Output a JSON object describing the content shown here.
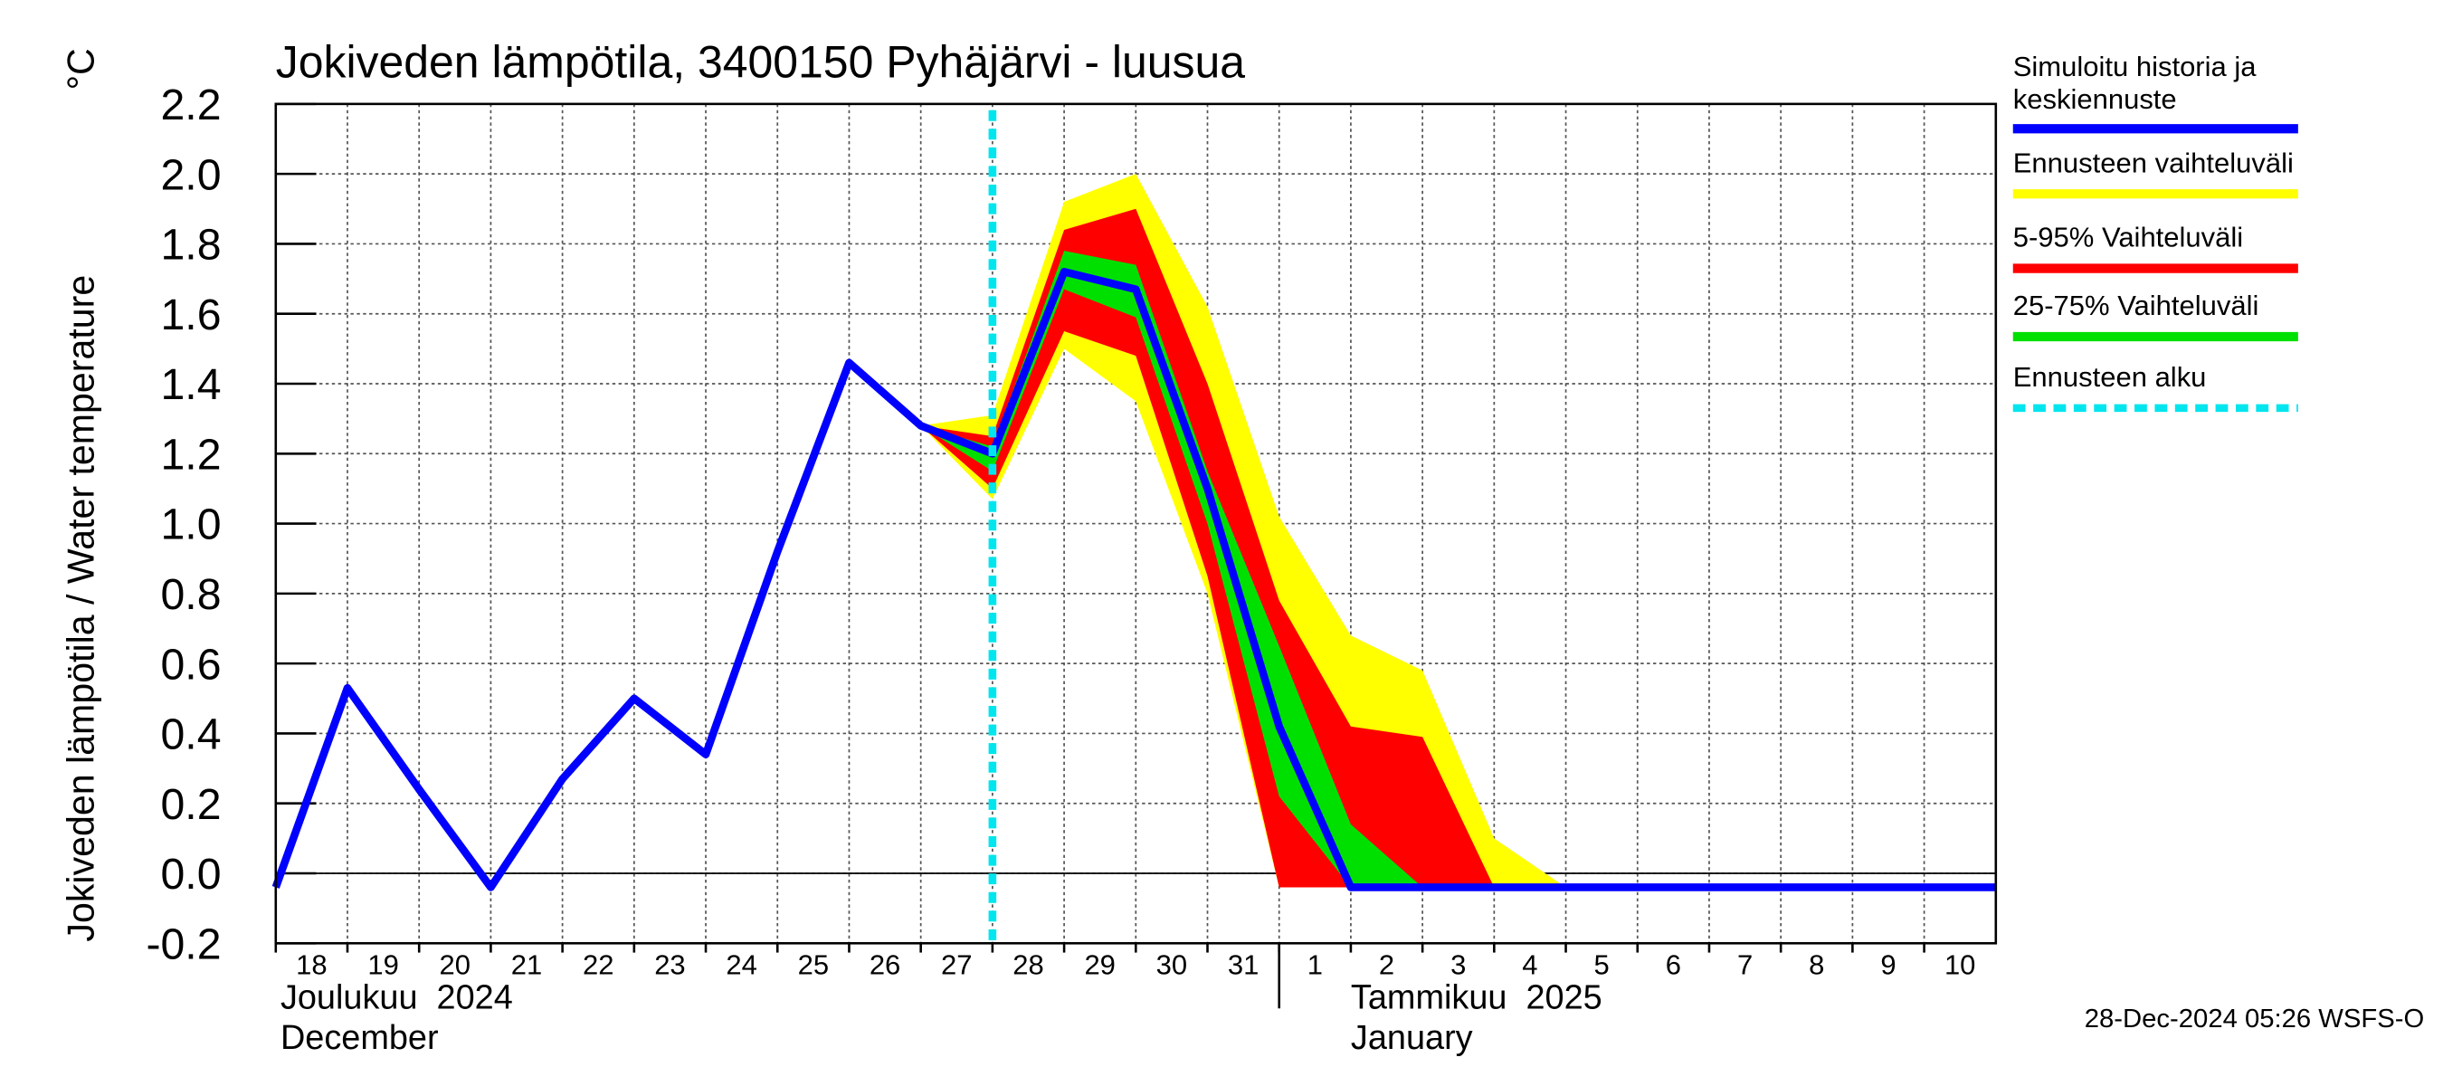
{
  "chart_data": {
    "type": "line",
    "title": "Jokiveden lämpötila, 3400150 Pyhäjärvi - luusua",
    "ylabel": "Jokiveden lämpötila / Water temperature",
    "yunit": "°C",
    "footer": "28-Dec-2024 05:26 WSFS-O",
    "month_labels": [
      "Joulukuu  2024",
      "December",
      "Tammikuu  2025",
      "January"
    ],
    "month_start": "2025-01-01",
    "x": [
      "2024-12-18",
      "2024-12-19",
      "2024-12-20",
      "2024-12-21",
      "2024-12-22",
      "2024-12-23",
      "2024-12-24",
      "2024-12-25",
      "2024-12-26",
      "2024-12-27",
      "2024-12-28",
      "2024-12-29",
      "2024-12-30",
      "2024-12-31",
      "2025-01-01",
      "2025-01-02",
      "2025-01-03",
      "2025-01-04",
      "2025-01-05",
      "2025-01-06",
      "2025-01-07",
      "2025-01-08",
      "2025-01-09",
      "2025-01-10",
      "2025-01-11"
    ],
    "xlim": [
      "2024-12-18",
      "2025-01-11"
    ],
    "xticks": [
      {
        "value": "2024-12-18",
        "label": "18"
      },
      {
        "value": "2024-12-19",
        "label": "19"
      },
      {
        "value": "2024-12-20",
        "label": "20"
      },
      {
        "value": "2024-12-21",
        "label": "21"
      },
      {
        "value": "2024-12-22",
        "label": "22"
      },
      {
        "value": "2024-12-23",
        "label": "23"
      },
      {
        "value": "2024-12-24",
        "label": "24"
      },
      {
        "value": "2024-12-25",
        "label": "25"
      },
      {
        "value": "2024-12-26",
        "label": "26"
      },
      {
        "value": "2024-12-27",
        "label": "27"
      },
      {
        "value": "2024-12-28",
        "label": "28"
      },
      {
        "value": "2024-12-29",
        "label": "29"
      },
      {
        "value": "2024-12-30",
        "label": "30"
      },
      {
        "value": "2024-12-31",
        "label": "31"
      },
      {
        "value": "2025-01-01",
        "label": "1"
      },
      {
        "value": "2025-01-02",
        "label": "2"
      },
      {
        "value": "2025-01-03",
        "label": "3"
      },
      {
        "value": "2025-01-04",
        "label": "4"
      },
      {
        "value": "2025-01-05",
        "label": "5"
      },
      {
        "value": "2025-01-06",
        "label": "6"
      },
      {
        "value": "2025-01-07",
        "label": "7"
      },
      {
        "value": "2025-01-08",
        "label": "8"
      },
      {
        "value": "2025-01-09",
        "label": "9"
      },
      {
        "value": "2025-01-10",
        "label": "10"
      }
    ],
    "ylim": [
      -0.2,
      2.2
    ],
    "yticks": [
      {
        "value": -0.2,
        "label": "-0.2"
      },
      {
        "value": 0,
        "label": "0.0"
      },
      {
        "value": 0.2,
        "label": "0.2"
      },
      {
        "value": 0.4,
        "label": "0.4"
      },
      {
        "value": 0.6,
        "label": "0.6"
      },
      {
        "value": 0.8,
        "label": "0.8"
      },
      {
        "value": 1,
        "label": "1.0"
      },
      {
        "value": 1.2,
        "label": "1.2"
      },
      {
        "value": 1.4,
        "label": "1.4"
      },
      {
        "value": 1.6,
        "label": "1.6"
      },
      {
        "value": 1.8,
        "label": "1.8"
      },
      {
        "value": 2,
        "label": "2.0"
      },
      {
        "value": 2.2,
        "label": "2.2"
      }
    ],
    "grid": true,
    "series": [
      {
        "name": "Simuloitu historia ja keskiennuste",
        "color": "#0000ff",
        "values": [
          -0.04,
          0.53,
          0.24,
          -0.04,
          0.27,
          0.5,
          0.34,
          0.92,
          1.46,
          1.28,
          1.2,
          1.72,
          1.67,
          1.1,
          0.42,
          -0.04,
          -0.04,
          -0.04,
          -0.04,
          -0.04,
          -0.04,
          -0.04,
          -0.04,
          -0.04,
          -0.04
        ]
      },
      {
        "name": "Ennusteen vaihteluväli",
        "color": "#ffff00",
        "upper": [
          null,
          null,
          null,
          null,
          null,
          null,
          null,
          null,
          null,
          1.28,
          1.31,
          1.92,
          2.0,
          1.62,
          1.02,
          0.68,
          0.58,
          0.1,
          -0.04,
          null,
          null,
          null,
          null,
          null,
          null
        ],
        "lower": [
          null,
          null,
          null,
          null,
          null,
          null,
          null,
          null,
          null,
          1.28,
          1.07,
          1.5,
          1.35,
          0.8,
          -0.04,
          -0.04,
          -0.04,
          -0.04,
          -0.04,
          null,
          null,
          null,
          null,
          null,
          null
        ]
      },
      {
        "name": "5-95% Vaihteluväli",
        "color": "#ff0000",
        "upper": [
          null,
          null,
          null,
          null,
          null,
          null,
          null,
          null,
          null,
          1.28,
          1.25,
          1.84,
          1.9,
          1.4,
          0.78,
          0.42,
          0.39,
          -0.04,
          null,
          null,
          null,
          null,
          null,
          null,
          null
        ],
        "lower": [
          null,
          null,
          null,
          null,
          null,
          null,
          null,
          null,
          null,
          1.28,
          1.1,
          1.55,
          1.48,
          0.85,
          -0.04,
          -0.04,
          -0.04,
          -0.04,
          null,
          null,
          null,
          null,
          null,
          null,
          null
        ]
      },
      {
        "name": "25-75% Vaihteluväli",
        "color": "#00e000",
        "upper": [
          null,
          null,
          null,
          null,
          null,
          null,
          null,
          null,
          null,
          1.28,
          1.22,
          1.78,
          1.74,
          1.15,
          0.65,
          0.14,
          -0.04,
          null,
          null,
          null,
          null,
          null,
          null,
          null,
          null
        ],
        "lower": [
          null,
          null,
          null,
          null,
          null,
          null,
          null,
          null,
          null,
          1.28,
          1.15,
          1.67,
          1.59,
          1.0,
          0.22,
          -0.04,
          -0.04,
          null,
          null,
          null,
          null,
          null,
          null,
          null,
          null
        ]
      }
    ],
    "forecast_start": {
      "x": "2024-12-28",
      "name": "Ennusteen alku",
      "color": "#00e5ee"
    }
  }
}
